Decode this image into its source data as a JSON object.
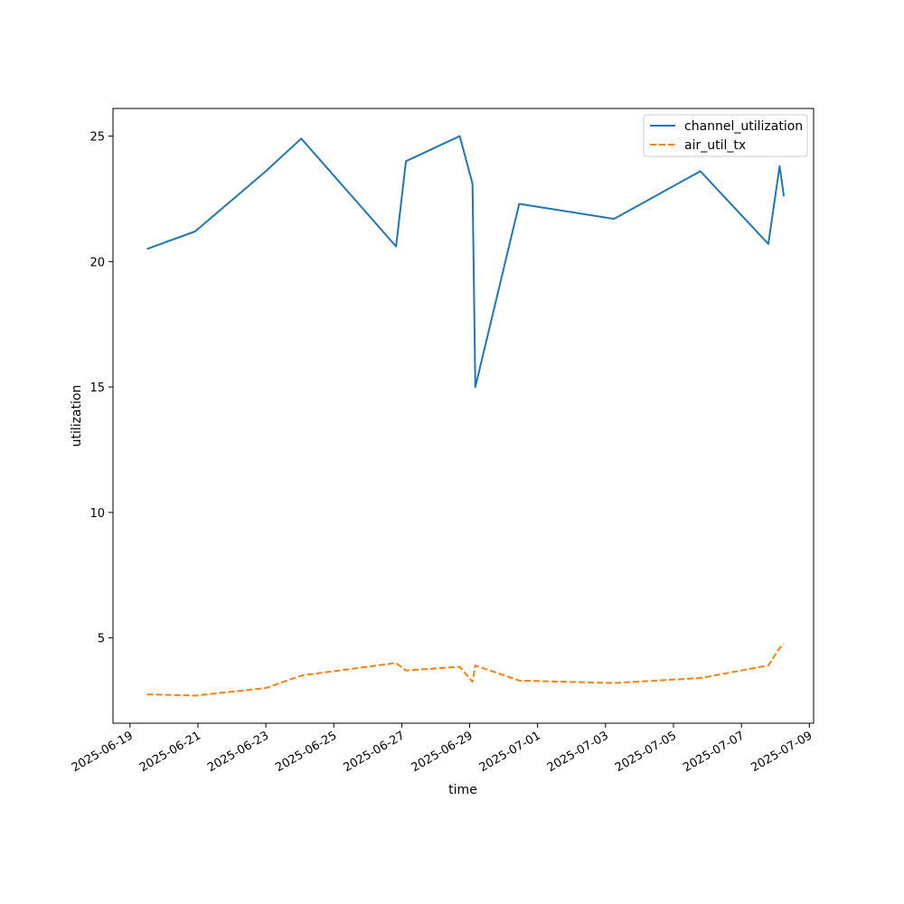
{
  "chart_data": {
    "type": "line",
    "title": "",
    "xlabel": "time",
    "ylabel": "utilization",
    "xlim": [
      "2025-06-18T12:00",
      "2025-07-09T03:00"
    ],
    "ylim": [
      1.6,
      26.1
    ],
    "x_ticks": [
      "2025-06-19",
      "2025-06-21",
      "2025-06-23",
      "2025-06-25",
      "2025-06-27",
      "2025-06-29",
      "2025-07-01",
      "2025-07-03",
      "2025-07-05",
      "2025-07-07",
      "2025-07-09"
    ],
    "y_ticks": [
      5,
      10,
      15,
      20,
      25
    ],
    "grid": false,
    "legend_position": "top-right",
    "x": [
      "2025-06-19T12:00",
      "2025-06-20T22:00",
      "2025-06-23T00:00",
      "2025-06-24T01:00",
      "2025-06-26T20:00",
      "2025-06-27T03:00",
      "2025-06-28T17:00",
      "2025-06-29T02:00",
      "2025-06-29T04:00",
      "2025-06-30T11:00",
      "2025-07-03T06:00",
      "2025-07-05T19:00",
      "2025-07-07T19:00",
      "2025-07-08T03:00",
      "2025-07-08T06:00"
    ],
    "series": [
      {
        "name": "channel_utilization",
        "color": "#1f77b4",
        "style": "solid",
        "values": [
          20.5,
          21.2,
          23.6,
          24.9,
          20.6,
          24.0,
          25.0,
          23.1,
          15.0,
          22.3,
          21.7,
          23.6,
          20.7,
          23.8,
          22.6
        ]
      },
      {
        "name": "air_util_tx",
        "color": "#ff7f0e",
        "style": "dashed",
        "values": [
          2.75,
          2.7,
          3.0,
          3.5,
          4.0,
          3.7,
          3.85,
          3.25,
          3.9,
          3.3,
          3.2,
          3.4,
          3.9,
          4.6,
          4.75
        ]
      }
    ]
  }
}
